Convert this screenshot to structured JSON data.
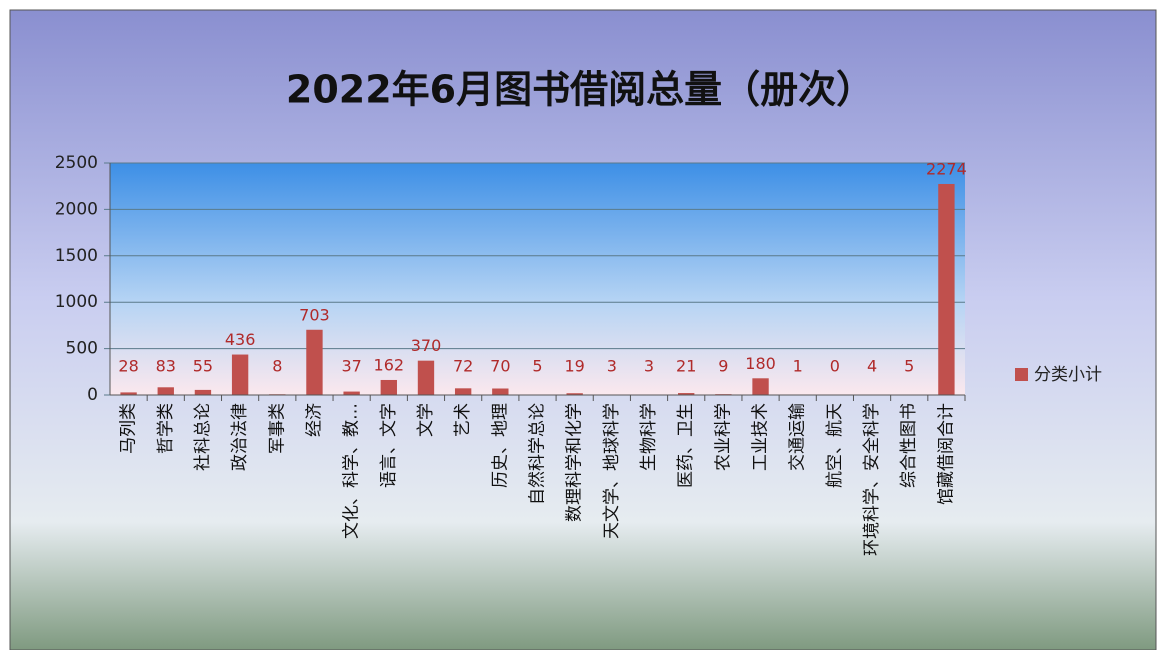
{
  "chart_data": {
    "type": "bar",
    "title": "2022年6月图书借阅总量（册次）",
    "categories": [
      "马列类",
      "哲学类",
      "社科总论",
      "政治法律",
      "军事类",
      "经济",
      "文化、科学、教…",
      "语言、文字",
      "文学",
      "艺术",
      "历史、地理",
      "自然科学总论",
      "数理科学和化学",
      "天文学、地球科学",
      "生物科学",
      "医药、卫生",
      "农业科学",
      "工业技术",
      "交通运输",
      "航空、航天",
      "环境科学、安全科学",
      "综合性图书",
      "馆藏借阅合计"
    ],
    "series": [
      {
        "name": "分类小计",
        "color": "#c0504d",
        "values": [
          28,
          83,
          55,
          436,
          8,
          703,
          37,
          162,
          370,
          72,
          70,
          5,
          19,
          3,
          3,
          21,
          9,
          180,
          1,
          0,
          4,
          5,
          2274
        ]
      }
    ],
    "ylim": [
      0,
      2500
    ],
    "yticks": [
      0,
      500,
      1000,
      1500,
      2000,
      2500
    ],
    "grid": true,
    "legend": "right"
  }
}
